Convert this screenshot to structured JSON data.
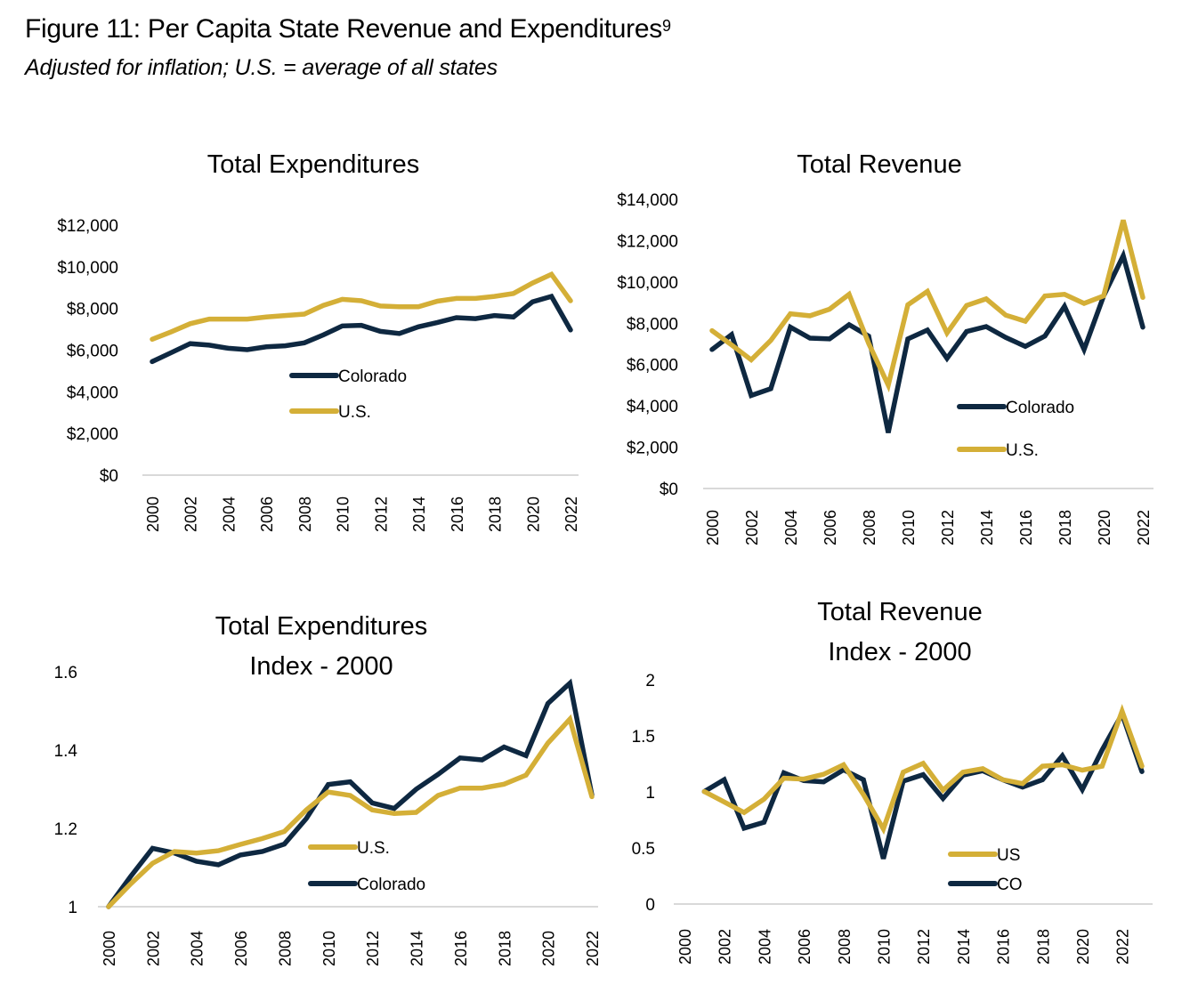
{
  "figure": {
    "title": "Figure 11: Per Capita State Revenue and Expenditures",
    "footnote_marker": "9",
    "subtitle": "Adjusted for inflation; U.S. = average of all states"
  },
  "colors": {
    "colorado": "#0e2841",
    "us": "#d4af37",
    "axis": "#d9d9d9"
  },
  "chart_data": [
    {
      "id": "total-expenditures",
      "type": "line",
      "title": [
        "Total Expenditures"
      ],
      "xlabel": "",
      "ylabel": "",
      "x": [
        2000,
        2001,
        2002,
        2003,
        2004,
        2005,
        2006,
        2007,
        2008,
        2009,
        2010,
        2011,
        2012,
        2013,
        2014,
        2015,
        2016,
        2017,
        2018,
        2019,
        2020,
        2021,
        2022
      ],
      "x_tick_labels": [
        "2000",
        "2002",
        "2004",
        "2006",
        "2008",
        "2010",
        "2012",
        "2014",
        "2016",
        "2018",
        "2020",
        "2022"
      ],
      "ylim": [
        0,
        12000
      ],
      "y_tick_labels": [
        "$0",
        "$2,000",
        "$4,000",
        "$6,000",
        "$8,000",
        "$10,000",
        "$12,000"
      ],
      "y_ticks": [
        0,
        2000,
        4000,
        6000,
        8000,
        10000,
        12000
      ],
      "grid": false,
      "legend": [
        "Colorado",
        "U.S."
      ],
      "legend_position": "center",
      "series": [
        {
          "name": "Colorado",
          "key": "colorado",
          "values": [
            5450,
            5880,
            6310,
            6240,
            6090,
            6020,
            6160,
            6210,
            6350,
            6730,
            7160,
            7190,
            6900,
            6800,
            7120,
            7330,
            7560,
            7510,
            7660,
            7590,
            8320,
            8580,
            6970
          ]
        },
        {
          "name": "U.S.",
          "key": "us",
          "values": [
            6520,
            6880,
            7270,
            7490,
            7490,
            7490,
            7590,
            7660,
            7730,
            8150,
            8440,
            8370,
            8120,
            8080,
            8080,
            8350,
            8480,
            8480,
            8580,
            8720,
            9220,
            9640,
            8370
          ]
        }
      ]
    },
    {
      "id": "total-revenue",
      "type": "line",
      "title": [
        "Total Revenue"
      ],
      "xlabel": "",
      "ylabel": "",
      "x": [
        2000,
        2001,
        2002,
        2003,
        2004,
        2005,
        2006,
        2007,
        2008,
        2009,
        2010,
        2011,
        2012,
        2013,
        2014,
        2015,
        2016,
        2017,
        2018,
        2019,
        2020,
        2021,
        2022
      ],
      "x_tick_labels": [
        "2000",
        "2002",
        "2004",
        "2006",
        "2008",
        "2010",
        "2012",
        "2014",
        "2016",
        "2018",
        "2020",
        "2022"
      ],
      "ylim": [
        0,
        14000
      ],
      "y_tick_labels": [
        "$0",
        "$2,000",
        "$4,000",
        "$6,000",
        "$8,000",
        "$10,000",
        "$12,000",
        "$14,000"
      ],
      "y_ticks": [
        0,
        2000,
        4000,
        6000,
        8000,
        10000,
        12000,
        14000
      ],
      "grid": false,
      "legend": [
        "Colorado",
        "U.S."
      ],
      "legend_position": "bottom-right",
      "series": [
        {
          "name": "Colorado",
          "key": "colorado",
          "values": [
            6730,
            7450,
            4500,
            4830,
            7810,
            7280,
            7240,
            7930,
            7380,
            2700,
            7240,
            7670,
            6300,
            7600,
            7840,
            7310,
            6880,
            7380,
            8820,
            6730,
            9320,
            11270,
            7810
          ]
        },
        {
          "name": "U.S.",
          "key": "us",
          "values": [
            7640,
            6950,
            6230,
            7170,
            8460,
            8360,
            8680,
            9400,
            7020,
            5000,
            8890,
            9540,
            7530,
            8860,
            9180,
            8390,
            8100,
            9320,
            9400,
            8960,
            9320,
            12990,
            9250
          ]
        }
      ]
    },
    {
      "id": "expenditures-index",
      "type": "line",
      "title": [
        "Total Expenditures",
        "Index - 2000"
      ],
      "xlabel": "",
      "ylabel": "",
      "x": [
        2000,
        2001,
        2002,
        2003,
        2004,
        2005,
        2006,
        2007,
        2008,
        2009,
        2010,
        2011,
        2012,
        2013,
        2014,
        2015,
        2016,
        2017,
        2018,
        2019,
        2020,
        2021,
        2022
      ],
      "x_tick_labels": [
        "2000",
        "2002",
        "2004",
        "2006",
        "2008",
        "2010",
        "2012",
        "2014",
        "2016",
        "2018",
        "2020",
        "2022"
      ],
      "ylim": [
        1,
        1.6
      ],
      "y_tick_labels": [
        "1",
        "1.2",
        "1.4",
        "1.6"
      ],
      "y_ticks": [
        1,
        1.2,
        1.4,
        1.6
      ],
      "grid": false,
      "legend": [
        "U.S.",
        "Colorado"
      ],
      "legend_position": "bottom-center",
      "series": [
        {
          "name": "Colorado",
          "key": "colorado",
          "values": [
            1.0,
            1.077,
            1.149,
            1.137,
            1.116,
            1.107,
            1.132,
            1.141,
            1.16,
            1.225,
            1.312,
            1.319,
            1.265,
            1.251,
            1.3,
            1.338,
            1.38,
            1.375,
            1.408,
            1.386,
            1.519,
            1.571,
            1.285
          ]
        },
        {
          "name": "U.S.",
          "key": "us",
          "values": [
            1.0,
            1.058,
            1.111,
            1.141,
            1.137,
            1.143,
            1.159,
            1.174,
            1.192,
            1.247,
            1.293,
            1.284,
            1.247,
            1.238,
            1.241,
            1.284,
            1.303,
            1.303,
            1.313,
            1.336,
            1.418,
            1.479,
            1.281
          ]
        }
      ]
    },
    {
      "id": "revenue-index",
      "type": "line",
      "title": [
        "Total Revenue",
        "Index - 2000"
      ],
      "xlabel": "",
      "ylabel": "",
      "x": [
        2001,
        2002,
        2003,
        2004,
        2005,
        2006,
        2007,
        2008,
        2009,
        2010,
        2011,
        2012,
        2013,
        2014,
        2015,
        2016,
        2017,
        2018,
        2019,
        2020,
        2021,
        2022,
        2023
      ],
      "x_axis_range": [
        2000,
        2023
      ],
      "x_tick_labels": [
        "2000",
        "2002",
        "2004",
        "2006",
        "2008",
        "2010",
        "2012",
        "2014",
        "2016",
        "2018",
        "2020",
        "2022"
      ],
      "ylim": [
        0,
        2
      ],
      "y_tick_labels": [
        "0",
        "0.5",
        "1",
        "1.5",
        "2"
      ],
      "y_ticks": [
        0,
        0.5,
        1,
        1.5,
        2
      ],
      "grid": false,
      "legend": [
        "US",
        "CO"
      ],
      "legend_position": "bottom-right",
      "series": [
        {
          "name": "CO",
          "key": "colorado",
          "values": [
            1.003,
            1.109,
            0.676,
            0.729,
            1.17,
            1.101,
            1.09,
            1.197,
            1.109,
            0.404,
            1.096,
            1.154,
            0.941,
            1.149,
            1.189,
            1.109,
            1.043,
            1.109,
            1.322,
            1.021,
            1.375,
            1.694,
            1.181
          ]
        },
        {
          "name": "US",
          "key": "us",
          "values": [
            1.003,
            0.91,
            0.816,
            0.936,
            1.122,
            1.114,
            1.157,
            1.242,
            0.976,
            0.67,
            1.176,
            1.255,
            1.016,
            1.176,
            1.207,
            1.109,
            1.074,
            1.229,
            1.242,
            1.194,
            1.229,
            1.721,
            1.229
          ]
        }
      ]
    }
  ]
}
